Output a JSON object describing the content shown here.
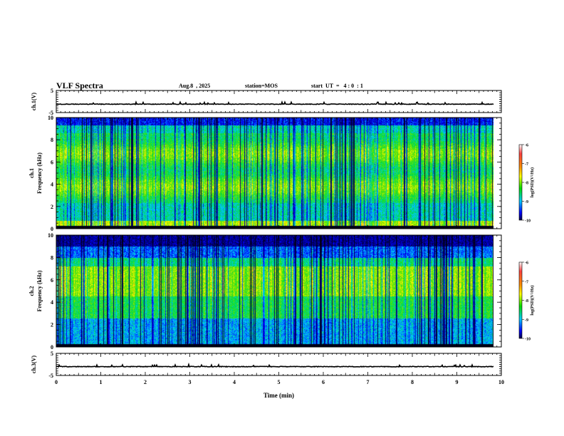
{
  "header": {
    "title": "VLF Spectra",
    "date": "Aug.8  , 2025",
    "station": "station=MOS",
    "start_ut": "start  UT  =   4 : 0  : 1"
  },
  "chart_data": {
    "type": "heatmap",
    "title": "VLF Spectra",
    "xlabel": "Time  (min)",
    "xlim": [
      0,
      10
    ],
    "x_ticks": [
      "0",
      "1",
      "2",
      "3",
      "4",
      "5",
      "6",
      "7",
      "8",
      "9",
      "10"
    ],
    "data_end_min": 9.83,
    "panels": [
      {
        "id": "ch1-voltage",
        "kind": "line",
        "ylabel": "ch.1(V)",
        "ylim": [
          -5,
          5
        ],
        "y_ticks": [
          "5",
          "-5"
        ],
        "baseline_value": -1.2
      },
      {
        "id": "ch1-spectrogram",
        "kind": "spectrogram",
        "ylabel_lines": [
          "ch.1",
          "Frequency  (kHz)"
        ],
        "ylim": [
          0,
          10
        ],
        "y_ticks": [
          "0",
          "2",
          "4",
          "6",
          "8",
          "10"
        ],
        "colorbar": {
          "label": "log(PSD)(V²/Hz)",
          "range": [
            -10,
            -6
          ],
          "ticks": [
            "-6",
            "-7",
            "-8",
            "-9",
            "-10"
          ]
        }
      },
      {
        "id": "ch2-spectrogram",
        "kind": "spectrogram",
        "ylabel_lines": [
          "ch.2",
          "Frequency  (kHz)"
        ],
        "ylim": [
          0,
          10
        ],
        "y_ticks": [
          "0",
          "2",
          "4",
          "6",
          "8",
          "10"
        ],
        "colorbar": {
          "label": "log(PSD)(V²/Hz)",
          "range": [
            -10,
            -6
          ],
          "ticks": [
            "-6",
            "-7",
            "-8",
            "-9",
            "-10"
          ]
        }
      },
      {
        "id": "ch3-voltage",
        "kind": "line",
        "ylabel": "ch.3(V)",
        "ylim": [
          -5,
          5
        ],
        "y_ticks": [
          "5",
          "-5"
        ],
        "baseline_value": -1.0
      }
    ]
  }
}
